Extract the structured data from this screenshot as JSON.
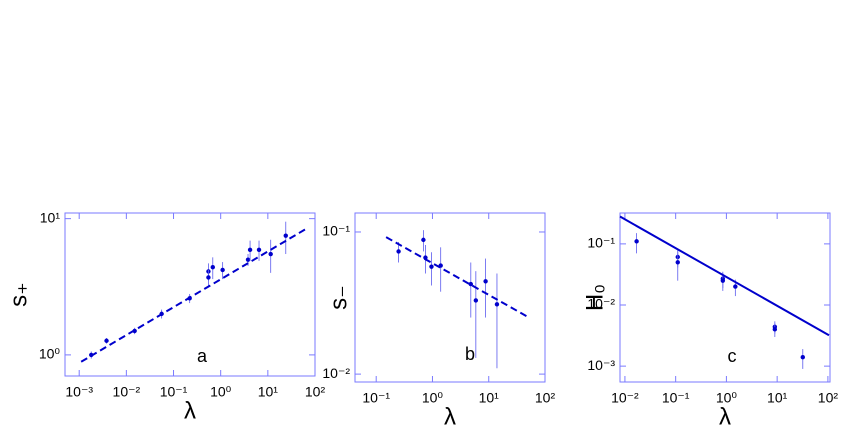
{
  "chart_data": [
    {
      "type": "scatter",
      "annotation": "a",
      "xlabel": "λ",
      "ylabel": "s₊",
      "xscale": "log",
      "yscale": "log",
      "xlim": [
        0.0005,
        100
      ],
      "ylim": [
        0.7,
        11
      ],
      "xticks": [
        {
          "value": 0.001,
          "label": "10⁻³"
        },
        {
          "value": 0.01,
          "label": "10⁻²"
        },
        {
          "value": 0.1,
          "label": "10⁻¹"
        },
        {
          "value": 1,
          "label": "10⁰"
        },
        {
          "value": 10,
          "label": "10¹"
        },
        {
          "value": 100,
          "label": "10²"
        }
      ],
      "yticks": [
        {
          "value": 1,
          "label": "10⁰"
        },
        {
          "value": 10,
          "label": "10¹"
        }
      ],
      "series": [
        {
          "kind": "points",
          "color": "#0000cc",
          "x": [
            0.0018,
            0.0038,
            0.015,
            0.056,
            0.22,
            0.55,
            0.55,
            0.68,
            1.1,
            3.8,
            4.2,
            6.5,
            11.5,
            24
          ],
          "values": [
            1.0,
            1.27,
            1.5,
            2.0,
            2.6,
            4.1,
            3.7,
            4.4,
            4.2,
            5.0,
            5.9,
            5.9,
            5.5,
            7.5
          ],
          "errors": [
            0.06,
            0.06,
            0.08,
            0.15,
            0.2,
            0.6,
            0.5,
            0.8,
            0.6,
            0.5,
            1.0,
            1.0,
            1.5,
            2.0
          ]
        },
        {
          "kind": "line",
          "dash": true,
          "color": "#0000cc",
          "x": [
            0.0011,
            68
          ],
          "values": [
            0.89,
            8.5
          ]
        }
      ]
    },
    {
      "type": "scatter",
      "annotation": "b",
      "xlabel": "λ",
      "ylabel": "s₋",
      "xscale": "log",
      "yscale": "log",
      "xlim": [
        0.042,
        100
      ],
      "ylim": [
        0.0088,
        0.136
      ],
      "xticks": [
        {
          "value": 0.1,
          "label": "10⁻¹"
        },
        {
          "value": 1,
          "label": "10⁰"
        },
        {
          "value": 10,
          "label": "10¹"
        },
        {
          "value": 100,
          "label": "10²"
        }
      ],
      "yticks": [
        {
          "value": 0.01,
          "label": "10⁻²"
        },
        {
          "value": 0.1,
          "label": "10⁻¹"
        }
      ],
      "series": [
        {
          "kind": "points",
          "color": "#0000cc",
          "x": [
            0.25,
            0.69,
            0.75,
            0.96,
            1.4,
            4.8,
            5.9,
            8.8,
            14
          ],
          "values": [
            0.073,
            0.088,
            0.066,
            0.057,
            0.058,
            0.043,
            0.033,
            0.045,
            0.031
          ],
          "errors": [
            0.012,
            0.015,
            0.015,
            0.015,
            0.02,
            0.018,
            0.02,
            0.02,
            0.02
          ]
        },
        {
          "kind": "line",
          "dash": true,
          "color": "#0000cc",
          "x": [
            0.15,
            52
          ],
          "values": [
            0.092,
            0.025
          ]
        }
      ]
    },
    {
      "type": "scatter",
      "annotation": "c",
      "xlabel": "λ",
      "ylabel": "H₀",
      "xscale": "log",
      "yscale": "log",
      "xlim": [
        0.008,
        110
      ],
      "ylim": [
        0.00055,
        0.32
      ],
      "xticks": [
        {
          "value": 0.01,
          "label": "10⁻²"
        },
        {
          "value": 0.1,
          "label": "10⁻¹"
        },
        {
          "value": 1,
          "label": "10⁰"
        },
        {
          "value": 10,
          "label": "10¹"
        },
        {
          "value": 100,
          "label": "10²"
        }
      ],
      "yticks": [
        {
          "value": 0.001,
          "label": "10⁻³"
        },
        {
          "value": 0.01,
          "label": "10⁻²"
        },
        {
          "value": 0.1,
          "label": "10⁻¹"
        }
      ],
      "series": [
        {
          "kind": "points",
          "color": "#0000cc",
          "x": [
            0.017,
            0.11,
            0.11,
            0.85,
            0.85,
            1.5,
            9,
            9,
            32
          ],
          "values": [
            0.11,
            0.061,
            0.05,
            0.027,
            0.025,
            0.02,
            0.0044,
            0.004,
            0.0014
          ],
          "errors": [
            0.04,
            0.02,
            0.025,
            0.008,
            0.008,
            0.006,
            0.001,
            0.001,
            0.0005
          ]
        },
        {
          "kind": "line",
          "dash": false,
          "color": "#0000cc",
          "x": [
            0.008,
            105
          ],
          "values": [
            0.28,
            0.0032
          ]
        }
      ]
    }
  ]
}
